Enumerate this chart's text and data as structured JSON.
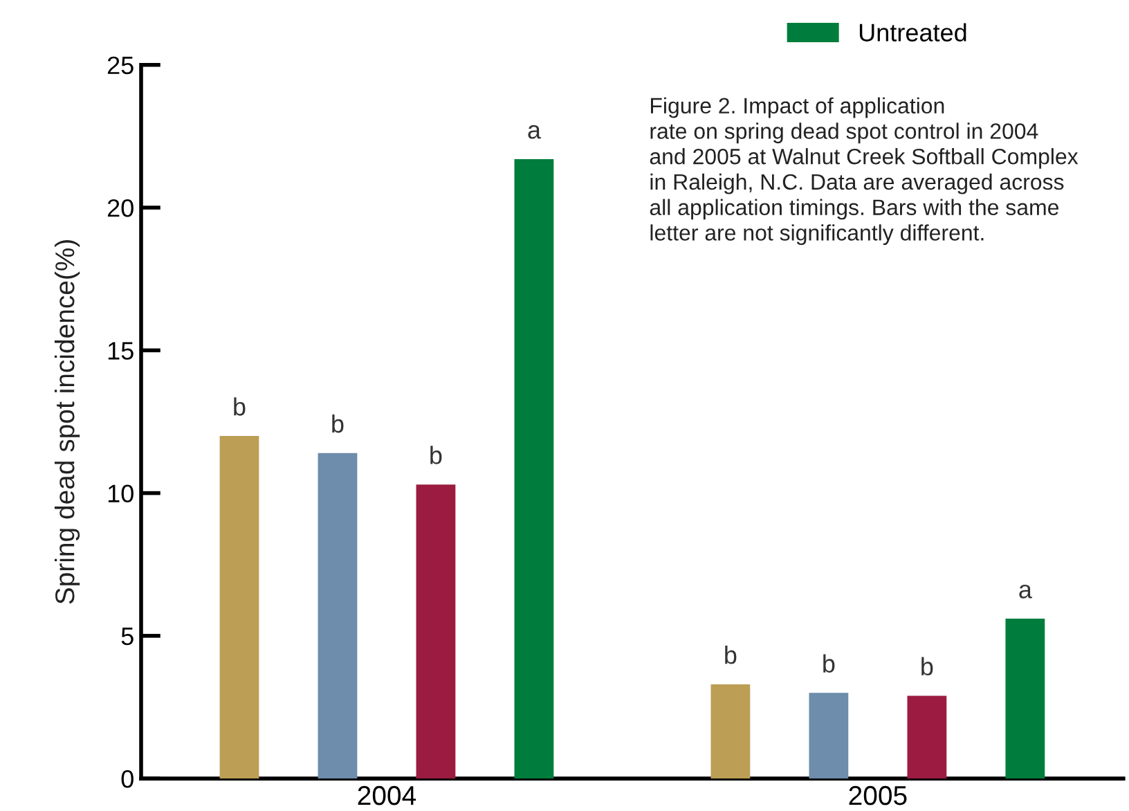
{
  "chart_data": {
    "type": "bar",
    "categories": [
      "2004",
      "2005"
    ],
    "ylabel": "Spring dead spot incidence(%)",
    "ylim": [
      0,
      25
    ],
    "yticks": [
      0,
      5,
      10,
      15,
      20,
      25
    ],
    "grid": false,
    "legend": "top",
    "series": [
      {
        "color": "#bc9e55",
        "values": [
          12.0,
          3.3
        ],
        "value_labels": [
          "b",
          "b"
        ]
      },
      {
        "color": "#6e8cab",
        "values": [
          11.4,
          3.0
        ],
        "value_labels": [
          "b",
          "b"
        ]
      },
      {
        "color": "#9b1c40",
        "values": [
          10.3,
          2.9
        ],
        "value_labels": [
          "b",
          "b"
        ]
      },
      {
        "name": "Untreated",
        "color": "#007d3c",
        "values": [
          21.7,
          5.6
        ],
        "value_labels": [
          "a",
          "a"
        ]
      }
    ],
    "annotations": [
      "Figure 2. Impact of application\nrate on spring dead spot control in 2004\nand 2005 at Walnut Creek Softball Complex\nin Raleigh, N.C. Data are averaged across\nall application timings. Bars with the same\nletter are not significantly different."
    ]
  }
}
